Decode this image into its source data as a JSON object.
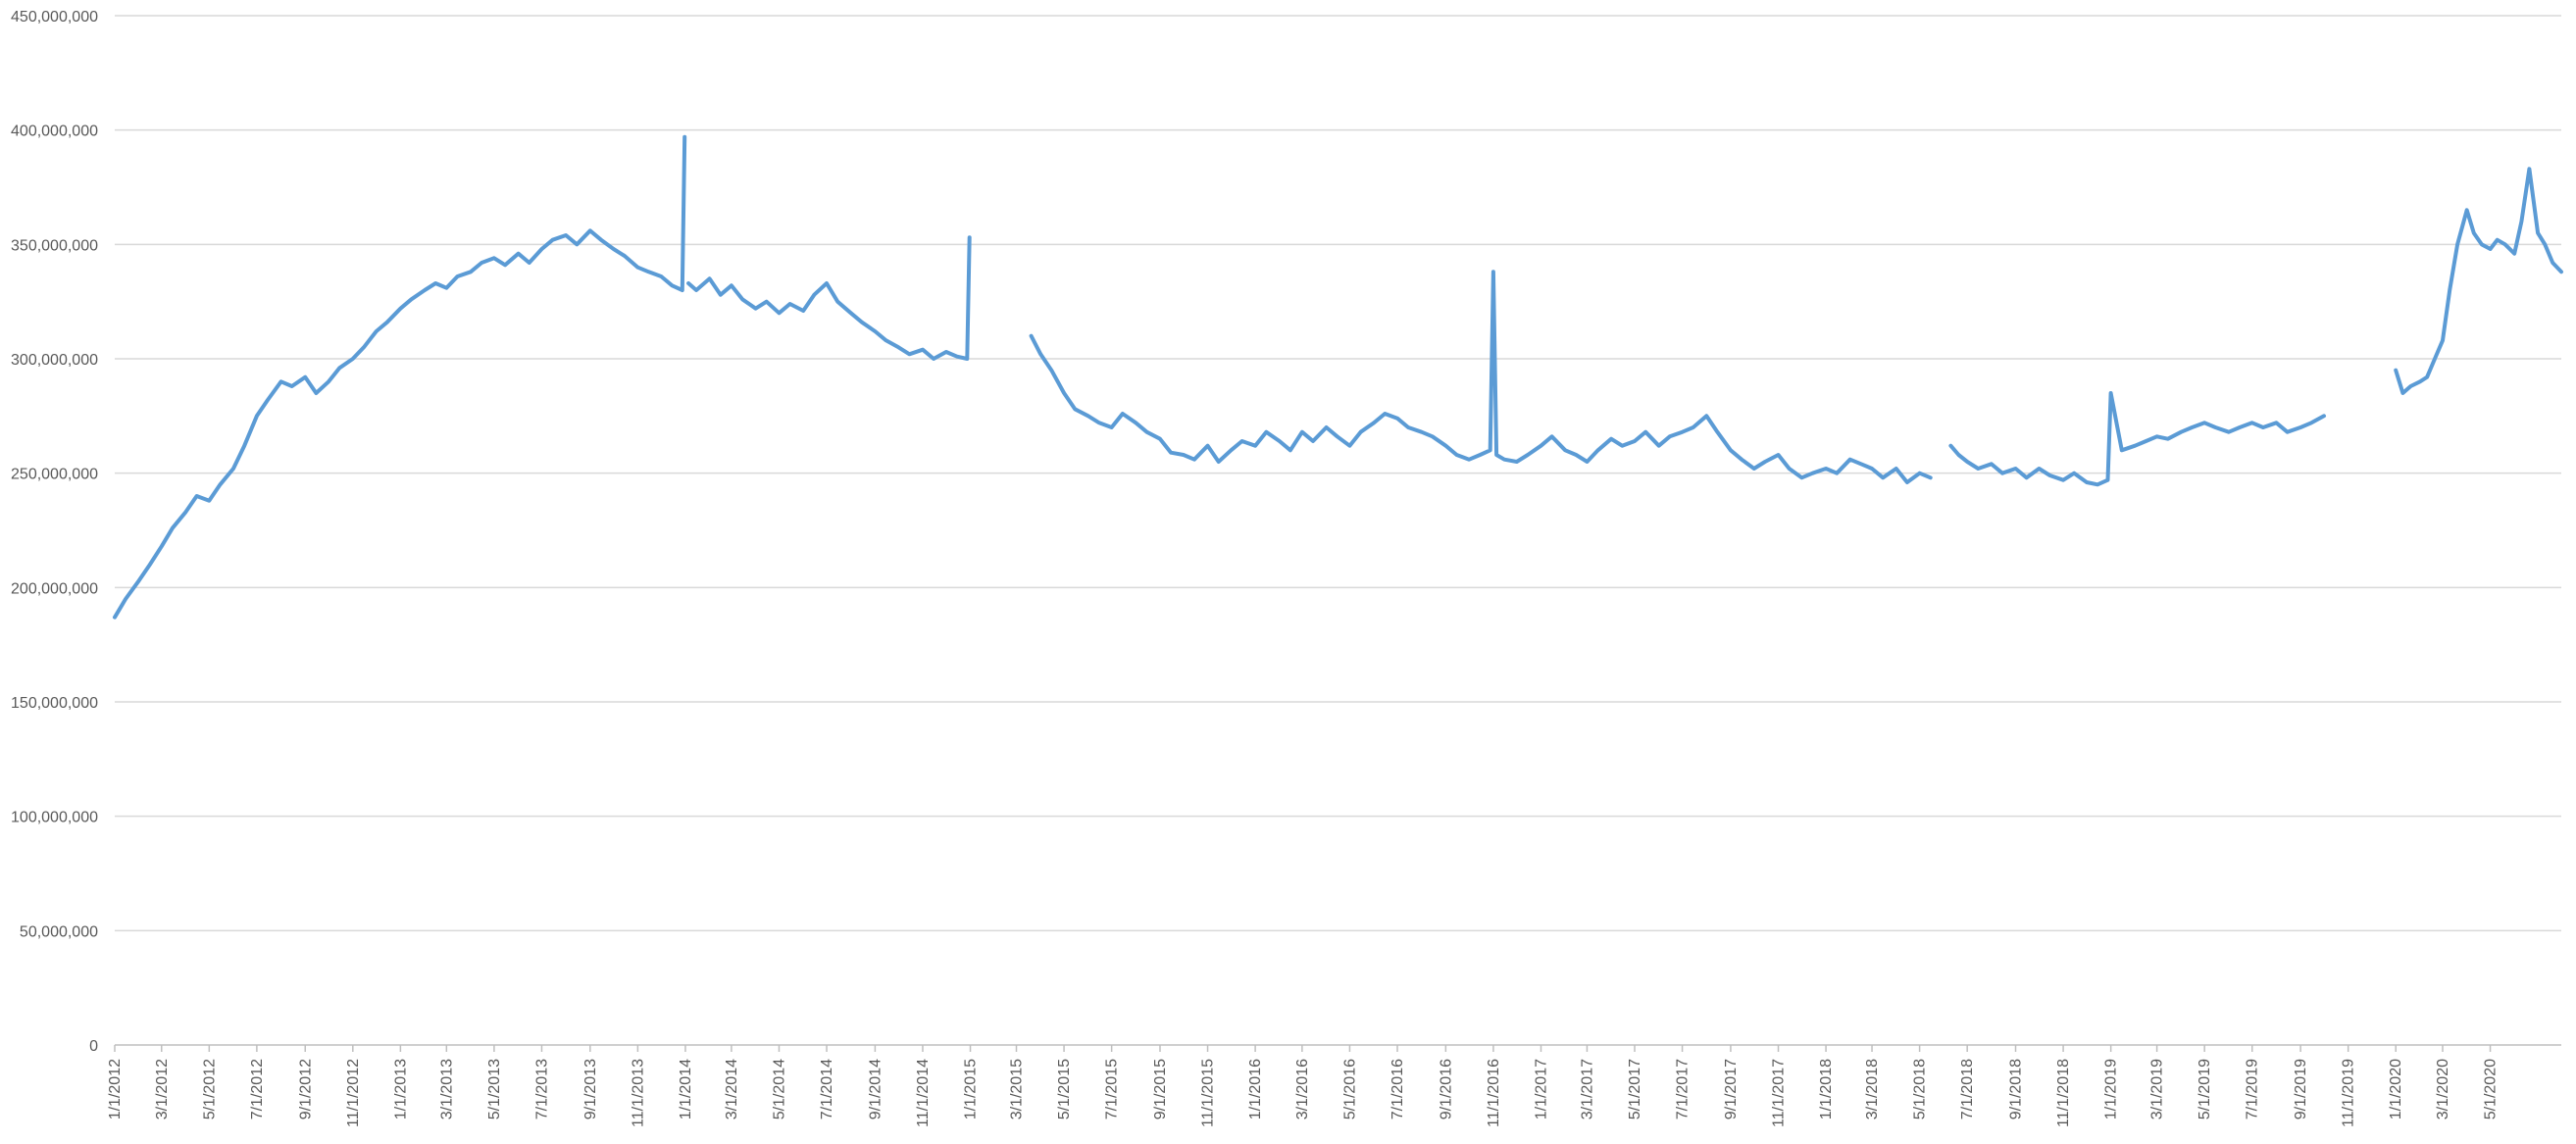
{
  "chart_data": {
    "type": "line",
    "title": "",
    "xlabel": "",
    "ylabel": "",
    "ylim": [
      0,
      450000000
    ],
    "grid": true,
    "legend": "none",
    "y_ticks": [
      {
        "value": 0,
        "label": "0"
      },
      {
        "value": 50000000,
        "label": "50,000,000"
      },
      {
        "value": 100000000,
        "label": "100,000,000"
      },
      {
        "value": 150000000,
        "label": "150,000,000"
      },
      {
        "value": 200000000,
        "label": "200,000,000"
      },
      {
        "value": 250000000,
        "label": "250,000,000"
      },
      {
        "value": 300000000,
        "label": "300,000,000"
      },
      {
        "value": 350000000,
        "label": "350,000,000"
      },
      {
        "value": 400000000,
        "label": "400,000,000"
      },
      {
        "value": 450000000,
        "label": "450,000,000"
      }
    ],
    "x_range": [
      "2012-01-01",
      "2020-07-31"
    ],
    "x_tick_labels": [
      "1/1/2012",
      "3/1/2012",
      "5/1/2012",
      "7/1/2012",
      "9/1/2012",
      "11/1/2012",
      "1/1/2013",
      "3/1/2013",
      "5/1/2013",
      "7/1/2013",
      "9/1/2013",
      "11/1/2013",
      "1/1/2014",
      "3/1/2014",
      "5/1/2014",
      "7/1/2014",
      "9/1/2014",
      "11/1/2014",
      "1/1/2015",
      "3/1/2015",
      "5/1/2015",
      "7/1/2015",
      "9/1/2015",
      "11/1/2015",
      "1/1/2016",
      "3/1/2016",
      "5/1/2016",
      "7/1/2016",
      "9/1/2016",
      "11/1/2016",
      "1/1/2017",
      "3/1/2017",
      "5/1/2017",
      "7/1/2017",
      "9/1/2017",
      "11/1/2017",
      "1/1/2018",
      "3/1/2018",
      "5/1/2018",
      "7/1/2018",
      "9/1/2018",
      "11/1/2018",
      "1/1/2019",
      "3/1/2019",
      "5/1/2019",
      "7/1/2019",
      "9/1/2019",
      "11/1/2019",
      "1/1/2020",
      "3/1/2020",
      "5/1/2020"
    ],
    "colors": {
      "series": "#5b9bd5",
      "grid": "#d9d9d9",
      "axis": "#bfbfbf",
      "text": "#595959"
    },
    "series": [
      {
        "segments": [
          {
            "x": [
              "2012-01-01",
              "2012-01-15",
              "2012-02-01",
              "2012-02-15",
              "2012-03-01",
              "2012-03-15",
              "2012-04-01",
              "2012-04-15",
              "2012-05-01",
              "2012-05-15",
              "2012-06-01",
              "2012-06-15",
              "2012-07-01",
              "2012-07-15",
              "2012-08-01",
              "2012-08-15",
              "2012-09-01",
              "2012-09-15",
              "2012-10-01",
              "2012-10-15",
              "2012-11-01",
              "2012-11-15",
              "2012-12-01",
              "2012-12-15",
              "2013-01-01",
              "2013-01-15",
              "2013-02-01",
              "2013-02-15",
              "2013-03-01",
              "2013-03-15",
              "2013-04-01",
              "2013-04-15",
              "2013-05-01",
              "2013-05-15",
              "2013-06-01",
              "2013-06-15",
              "2013-07-01",
              "2013-07-15",
              "2013-08-01",
              "2013-08-15",
              "2013-09-01",
              "2013-09-15",
              "2013-10-01",
              "2013-10-15",
              "2013-11-01",
              "2013-11-15",
              "2013-12-01",
              "2013-12-15",
              "2013-12-28",
              "2013-12-31"
            ],
            "y": [
              187000000,
              195000000,
              203000000,
              210000000,
              218000000,
              226000000,
              233000000,
              240000000,
              238000000,
              245000000,
              252000000,
              262000000,
              275000000,
              282000000,
              290000000,
              288000000,
              292000000,
              285000000,
              290000000,
              296000000,
              300000000,
              305000000,
              312000000,
              316000000,
              322000000,
              326000000,
              330000000,
              333000000,
              331000000,
              336000000,
              338000000,
              342000000,
              344000000,
              341000000,
              346000000,
              342000000,
              348000000,
              352000000,
              354000000,
              350000000,
              356000000,
              352000000,
              348000000,
              345000000,
              340000000,
              338000000,
              336000000,
              332000000,
              330000000,
              397000000
            ]
          },
          {
            "x": [
              "2014-01-05",
              "2014-01-15",
              "2014-02-01",
              "2014-02-15",
              "2014-03-01",
              "2014-03-15",
              "2014-04-01",
              "2014-04-15",
              "2014-05-01",
              "2014-05-15",
              "2014-06-01",
              "2014-06-15",
              "2014-07-01",
              "2014-07-15",
              "2014-08-01",
              "2014-08-15",
              "2014-09-01",
              "2014-09-15",
              "2014-10-01",
              "2014-10-15",
              "2014-11-01",
              "2014-11-15",
              "2014-12-01",
              "2014-12-15",
              "2014-12-28",
              "2014-12-31"
            ],
            "y": [
              333000000,
              330000000,
              335000000,
              328000000,
              332000000,
              326000000,
              322000000,
              325000000,
              320000000,
              324000000,
              321000000,
              328000000,
              333000000,
              325000000,
              320000000,
              316000000,
              312000000,
              308000000,
              305000000,
              302000000,
              304000000,
              300000000,
              303000000,
              301000000,
              300000000,
              353000000
            ]
          },
          {
            "x": [
              "2015-03-20",
              "2015-04-01",
              "2015-04-15",
              "2015-05-01",
              "2015-05-15",
              "2015-06-01",
              "2015-06-15",
              "2015-07-01",
              "2015-07-15",
              "2015-08-01",
              "2015-08-15",
              "2015-09-01",
              "2015-09-15",
              "2015-10-01",
              "2015-10-15",
              "2015-11-01",
              "2015-11-15",
              "2015-12-01",
              "2015-12-15",
              "2016-01-01",
              "2016-01-15",
              "2016-02-01",
              "2016-02-15",
              "2016-03-01",
              "2016-03-15",
              "2016-04-01",
              "2016-04-15",
              "2016-05-01",
              "2016-05-15",
              "2016-06-01",
              "2016-06-15",
              "2016-07-01",
              "2016-07-15",
              "2016-08-01",
              "2016-08-15",
              "2016-09-01",
              "2016-09-15",
              "2016-10-01",
              "2016-10-15",
              "2016-10-28",
              "2016-11-01",
              "2016-11-05",
              "2016-11-15",
              "2016-12-01",
              "2016-12-15",
              "2017-01-01",
              "2017-01-15",
              "2017-02-01",
              "2017-02-15",
              "2017-03-01",
              "2017-03-15",
              "2017-04-01",
              "2017-04-15",
              "2017-05-01",
              "2017-05-15",
              "2017-06-01",
              "2017-06-15",
              "2017-07-01",
              "2017-07-15",
              "2017-08-01",
              "2017-08-15",
              "2017-09-01",
              "2017-09-15",
              "2017-10-01",
              "2017-10-15",
              "2017-11-01",
              "2017-11-15",
              "2017-12-01",
              "2017-12-15",
              "2018-01-01",
              "2018-01-15",
              "2018-02-01",
              "2018-02-15",
              "2018-03-01",
              "2018-03-15",
              "2018-04-01",
              "2018-04-15",
              "2018-05-01",
              "2018-05-15"
            ],
            "y": [
              310000000,
              302000000,
              295000000,
              285000000,
              278000000,
              275000000,
              272000000,
              270000000,
              276000000,
              272000000,
              268000000,
              265000000,
              259000000,
              258000000,
              256000000,
              262000000,
              255000000,
              260000000,
              264000000,
              262000000,
              268000000,
              264000000,
              260000000,
              268000000,
              264000000,
              270000000,
              266000000,
              262000000,
              268000000,
              272000000,
              276000000,
              274000000,
              270000000,
              268000000,
              266000000,
              262000000,
              258000000,
              256000000,
              258000000,
              260000000,
              338000000,
              258000000,
              256000000,
              255000000,
              258000000,
              262000000,
              266000000,
              260000000,
              258000000,
              255000000,
              260000000,
              265000000,
              262000000,
              264000000,
              268000000,
              262000000,
              266000000,
              268000000,
              270000000,
              275000000,
              268000000,
              260000000,
              256000000,
              252000000,
              255000000,
              258000000,
              252000000,
              248000000,
              250000000,
              252000000,
              250000000,
              256000000,
              254000000,
              252000000,
              248000000,
              252000000,
              246000000,
              250000000,
              248000000
            ]
          },
          {
            "x": [
              "2018-06-10",
              "2018-06-20",
              "2018-07-01",
              "2018-07-15",
              "2018-08-01",
              "2018-08-15",
              "2018-09-01",
              "2018-09-15",
              "2018-10-01",
              "2018-10-15",
              "2018-11-01",
              "2018-11-15",
              "2018-12-01",
              "2018-12-15",
              "2018-12-28",
              "2019-01-01",
              "2019-01-15",
              "2019-02-01",
              "2019-02-15",
              "2019-03-01",
              "2019-03-15",
              "2019-04-01",
              "2019-04-15",
              "2019-05-01",
              "2019-05-15",
              "2019-06-01",
              "2019-06-15",
              "2019-07-01",
              "2019-07-15",
              "2019-08-01",
              "2019-08-15",
              "2019-09-01",
              "2019-09-15",
              "2019-10-01"
            ],
            "y": [
              262000000,
              258000000,
              255000000,
              252000000,
              254000000,
              250000000,
              252000000,
              248000000,
              252000000,
              249000000,
              247000000,
              250000000,
              246000000,
              245000000,
              247000000,
              285000000,
              260000000,
              262000000,
              264000000,
              266000000,
              265000000,
              268000000,
              270000000,
              272000000,
              270000000,
              268000000,
              270000000,
              272000000,
              270000000,
              272000000,
              268000000,
              270000000,
              272000000,
              275000000
            ]
          },
          {
            "x": [
              "2020-01-01",
              "2020-01-10",
              "2020-01-20",
              "2020-02-01",
              "2020-02-10",
              "2020-02-20",
              "2020-03-01",
              "2020-03-10",
              "2020-03-20",
              "2020-04-01",
              "2020-04-10",
              "2020-04-20",
              "2020-05-01",
              "2020-05-10",
              "2020-05-20",
              "2020-06-01",
              "2020-06-10",
              "2020-06-20",
              "2020-07-01",
              "2020-07-10",
              "2020-07-20",
              "2020-07-31"
            ],
            "y": [
              295000000,
              285000000,
              288000000,
              290000000,
              292000000,
              300000000,
              308000000,
              330000000,
              350000000,
              365000000,
              355000000,
              350000000,
              348000000,
              352000000,
              350000000,
              346000000,
              360000000,
              383000000,
              355000000,
              350000000,
              342000000,
              338000000
            ]
          }
        ]
      }
    ]
  }
}
